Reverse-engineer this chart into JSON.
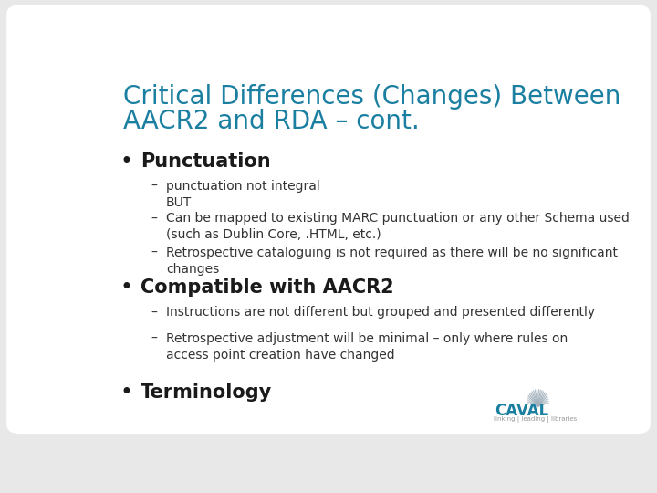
{
  "bg_color": "#e8e8e8",
  "slide_bg": "#ffffff",
  "title_color": "#1a7fa0",
  "title_text_line1": "Critical Differences (Changes) Between",
  "title_text_line2": "AACR2 and RDA – cont.",
  "title_fontsize": 20,
  "bullet_color": "#1a1a1a",
  "bullet1_label": "Punctuation",
  "bullet1_fontsize": 15,
  "bullet1_sub": [
    "punctuation not integral\nBUT",
    "Can be mapped to existing MARC punctuation or any other Schema used\n(such as Dublin Core, .HTML, etc.)",
    "Retrospective cataloguing is not required as there will be no significant\nchanges"
  ],
  "bullet2_label": "Compatible with AACR2",
  "bullet2_fontsize": 15,
  "bullet2_sub": [
    "Instructions are not different but grouped and presented differently",
    "Retrospective adjustment will be minimal – only where rules on\naccess point creation have changed"
  ],
  "bullet3_label": "Terminology",
  "bullet3_fontsize": 15,
  "sub_fontsize": 10,
  "sub_color": "#333333",
  "caval_text": "CAVAL",
  "caval_sub": "linking | leading | libraries",
  "caval_color": "#1a7fa0",
  "caval_sub_color": "#999999",
  "logo_color": "#a0b0bc"
}
